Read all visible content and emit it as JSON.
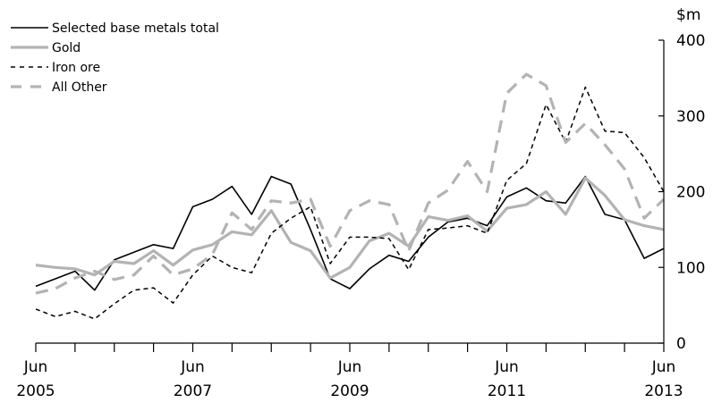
{
  "chart_data": {
    "type": "line",
    "title": "",
    "xlabel": "",
    "ylabel": "$m",
    "ylim": [
      0,
      400
    ],
    "y_axis_side": "right",
    "y_ticks": [
      {
        "value": 0,
        "label": "0"
      },
      {
        "value": 100,
        "label": "100"
      },
      {
        "value": 200,
        "label": "200"
      },
      {
        "value": 300,
        "label": "300"
      },
      {
        "value": 400,
        "label": "400"
      }
    ],
    "x_range": [
      "2005-06",
      "2013-06"
    ],
    "x_tick_labels": [
      {
        "month": "Jun",
        "year": "2005"
      },
      {
        "month": "Jun",
        "year": "2007"
      },
      {
        "month": "Jun",
        "year": "2009"
      },
      {
        "month": "Jun",
        "year": "2011"
      },
      {
        "month": "Jun",
        "year": "2013"
      }
    ],
    "x": [
      "2005-06",
      "2005-09",
      "2005-12",
      "2006-03",
      "2006-06",
      "2006-09",
      "2006-12",
      "2007-03",
      "2007-06",
      "2007-09",
      "2007-12",
      "2008-03",
      "2008-06",
      "2008-09",
      "2008-12",
      "2009-03",
      "2009-06",
      "2009-09",
      "2009-12",
      "2010-03",
      "2010-06",
      "2010-09",
      "2010-12",
      "2011-03",
      "2011-06",
      "2011-09",
      "2011-12",
      "2012-03",
      "2012-06",
      "2012-09",
      "2012-12",
      "2013-03",
      "2013-06"
    ],
    "grid": false,
    "legend_position": "top-left",
    "series": [
      {
        "name": "Selected base metals total",
        "color": "#000000",
        "style": "solid",
        "values": [
          75,
          85,
          95,
          70,
          110,
          120,
          130,
          125,
          180,
          190,
          207,
          170,
          220,
          210,
          150,
          85,
          72,
          98,
          116,
          108,
          140,
          160,
          165,
          155,
          193,
          205,
          188,
          185,
          220,
          170,
          163,
          112,
          125
        ]
      },
      {
        "name": "Gold",
        "color": "#b3b3b3",
        "style": "solid",
        "values": [
          103,
          100,
          98,
          90,
          108,
          105,
          122,
          103,
          123,
          130,
          147,
          143,
          175,
          133,
          122,
          86,
          100,
          135,
          145,
          128,
          167,
          162,
          168,
          148,
          178,
          183,
          200,
          170,
          218,
          195,
          163,
          155,
          150
        ]
      },
      {
        "name": "Iron ore",
        "color": "#000000",
        "style": "dashed",
        "values": [
          45,
          35,
          42,
          32,
          52,
          70,
          73,
          53,
          90,
          115,
          100,
          93,
          145,
          165,
          180,
          105,
          140,
          140,
          138,
          97,
          150,
          152,
          155,
          145,
          215,
          237,
          315,
          265,
          338,
          280,
          278,
          245,
          200
        ]
      },
      {
        "name": "All Other",
        "color": "#b3b3b3",
        "style": "longdash",
        "values": [
          66,
          72,
          86,
          95,
          84,
          90,
          115,
          90,
          98,
          117,
          172,
          150,
          188,
          185,
          190,
          128,
          175,
          188,
          183,
          122,
          185,
          202,
          240,
          200,
          330,
          355,
          340,
          265,
          290,
          262,
          230,
          165,
          190
        ]
      }
    ]
  }
}
